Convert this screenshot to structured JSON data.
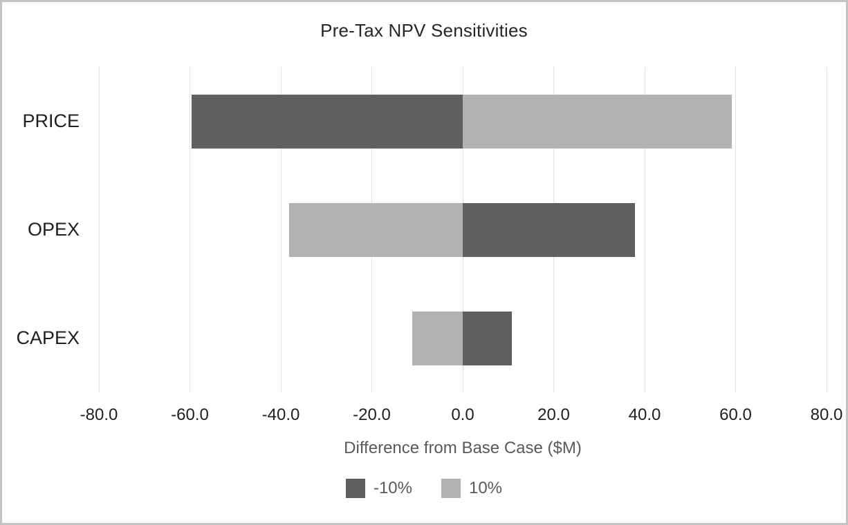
{
  "chart_data": {
    "type": "bar",
    "orientation": "horizontal",
    "title": "Pre-Tax NPV Sensitivities",
    "xlabel": "Difference from Base Case ($M)",
    "categories": [
      "PRICE",
      "OPEX",
      "CAPEX"
    ],
    "series": [
      {
        "name": "-10%",
        "color": "#5f5f5f",
        "values": [
          -59.6,
          37.9,
          10.8
        ]
      },
      {
        "name": "10%",
        "color": "#b2b2b2",
        "values": [
          59.1,
          -38.2,
          -11.1
        ]
      }
    ],
    "xlim": [
      -80,
      80
    ],
    "xticks": [
      -80,
      -60,
      -40,
      -20,
      0,
      20,
      40,
      60,
      80
    ],
    "xtick_labels": [
      "-80.0",
      "-60.0",
      "-40.0",
      "-20.0",
      "0.0",
      "20.0",
      "40.0",
      "60.0",
      "80.0"
    ],
    "grid": "vertical-gridlines-on",
    "legend_position": "bottom",
    "colors": {
      "gridline": "#e2e2e2",
      "figure_border": "#c3c3c3",
      "title_text": "#262626",
      "tick_text": "#1f1f1f",
      "axis_label_text": "#595959",
      "legend_text": "#595959"
    }
  }
}
